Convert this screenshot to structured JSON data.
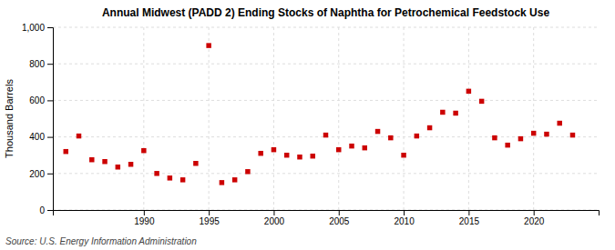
{
  "chart_data": {
    "type": "scatter",
    "title": "Annual Midwest (PADD 2) Ending Stocks of Naphtha for Petrochemical Feedstock Use",
    "ylabel": "Thousand Barrels",
    "annotations": [
      "Source: U.S. Energy Information Administration"
    ],
    "color": "#cc0000",
    "marker": "square",
    "grid": true,
    "xlim": [
      1983,
      2025
    ],
    "xticks": [
      1990,
      1995,
      2000,
      2005,
      2010,
      2015,
      2020
    ],
    "ylim": [
      0,
      1000
    ],
    "yticks": [
      0,
      200,
      400,
      600,
      800,
      {
        "value": 1000,
        "label": "1,000"
      }
    ],
    "x": [
      1984,
      1985,
      1986,
      1987,
      1988,
      1989,
      1990,
      1991,
      1992,
      1993,
      1994,
      1995,
      1996,
      1997,
      1998,
      1999,
      2000,
      2001,
      2002,
      2003,
      2004,
      2005,
      2006,
      2007,
      2008,
      2009,
      2010,
      2011,
      2012,
      2013,
      2014,
      2015,
      2016,
      2017,
      2018,
      2019,
      2020,
      2021,
      2022,
      2023
    ],
    "values": [
      320,
      405,
      275,
      265,
      235,
      250,
      325,
      200,
      175,
      165,
      255,
      900,
      150,
      165,
      210,
      310,
      330,
      300,
      290,
      295,
      410,
      330,
      350,
      340,
      430,
      395,
      300,
      405,
      450,
      535,
      530,
      650,
      595,
      395,
      355,
      390,
      420,
      415,
      475,
      410
    ]
  }
}
